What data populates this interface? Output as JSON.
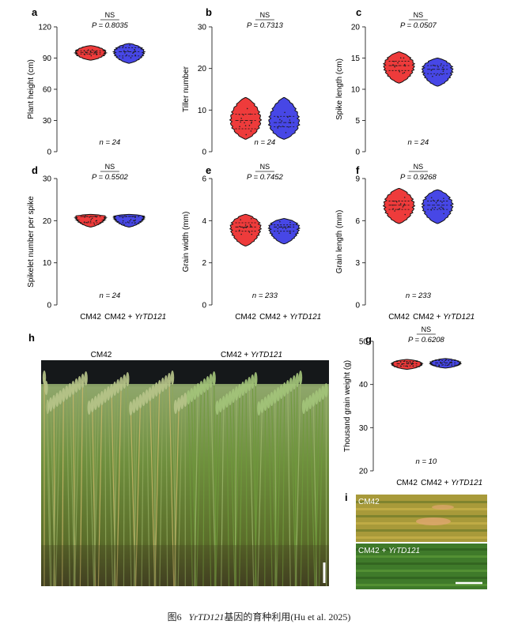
{
  "figure": {
    "caption_prefix": "图6",
    "caption_italic": "YrTD121",
    "caption_rest": "基因的育种利用(Hu et al. 2025)",
    "genotypes": [
      "CM42",
      "CM42 + ",
      "YrTD121"
    ],
    "colors": {
      "cm42": "#ee3b3b",
      "yrtd": "#4747e6",
      "outline": "#111111"
    }
  },
  "chart_data": [
    {
      "panel": "a",
      "type": "violin",
      "ylabel": "Plant height (cm)",
      "ylim": [
        0,
        120
      ],
      "yticks": [
        0,
        30,
        60,
        90,
        120
      ],
      "sig": "NS",
      "p": "P = 0.8035",
      "n": "n = 24",
      "series": [
        {
          "name": "CM42",
          "center": 95.5,
          "min": 88,
          "max": 102,
          "q1": 94,
          "q3": 97
        },
        {
          "name": "CM42 + YrTD121",
          "center": 96,
          "min": 85,
          "max": 104,
          "q1": 92,
          "q3": 100
        }
      ]
    },
    {
      "panel": "b",
      "type": "violin",
      "ylabel": "Tiller number",
      "ylim": [
        0,
        30
      ],
      "yticks": [
        0,
        10,
        20,
        30
      ],
      "sig": "NS",
      "p": "P = 0.7313",
      "n": "n = 24",
      "series": [
        {
          "name": "CM42",
          "center": 7.5,
          "min": 3,
          "max": 13,
          "q1": 5.5,
          "q3": 9
        },
        {
          "name": "CM42 + YrTD121",
          "center": 7,
          "min": 3,
          "max": 13,
          "q1": 6,
          "q3": 8.5
        }
      ]
    },
    {
      "panel": "c",
      "type": "violin",
      "ylabel": "Spike length (cm)",
      "ylim": [
        0,
        20
      ],
      "yticks": [
        0,
        5,
        10,
        15,
        20
      ],
      "sig": "NS",
      "p": "P = 0.0507",
      "n": "n = 24",
      "series": [
        {
          "name": "CM42",
          "center": 13.8,
          "min": 11,
          "max": 16,
          "q1": 13,
          "q3": 14.5
        },
        {
          "name": "CM42 + YrTD121",
          "center": 13.2,
          "min": 10.5,
          "max": 15,
          "q1": 12.5,
          "q3": 13.8
        }
      ]
    },
    {
      "panel": "d",
      "type": "violin",
      "ylabel": "Spikelet number per spike",
      "ylim": [
        0,
        30
      ],
      "yticks": [
        0,
        10,
        20,
        30
      ],
      "sig": "NS",
      "p": "P = 0.5502",
      "n": "n = 24",
      "series": [
        {
          "name": "CM42",
          "center": 21,
          "min": 18.5,
          "max": 21.5,
          "q1": 19.5,
          "q3": 21
        },
        {
          "name": "CM42 + YrTD121",
          "center": 21,
          "min": 18.5,
          "max": 21.5,
          "q1": 19.5,
          "q3": 21
        }
      ]
    },
    {
      "panel": "e",
      "type": "violin",
      "ylabel": "Grain width (mm)",
      "ylim": [
        0,
        6
      ],
      "yticks": [
        0,
        2,
        4,
        6
      ],
      "sig": "NS",
      "p": "P = 0.7452",
      "n": "n = 233",
      "series": [
        {
          "name": "CM42",
          "center": 3.7,
          "min": 2.8,
          "max": 4.3,
          "q1": 3.5,
          "q3": 3.9
        },
        {
          "name": "CM42 + YrTD121",
          "center": 3.7,
          "min": 2.9,
          "max": 4.1,
          "q1": 3.5,
          "q3": 3.8
        }
      ]
    },
    {
      "panel": "f",
      "type": "violin",
      "ylabel": "Grain length (mm)",
      "ylim": [
        0,
        9
      ],
      "yticks": [
        0,
        3,
        6,
        9
      ],
      "sig": "NS",
      "p": "P = 0.9268",
      "n": "n = 233",
      "series": [
        {
          "name": "CM42",
          "center": 7.1,
          "min": 5.8,
          "max": 8.3,
          "q1": 6.8,
          "q3": 7.4
        },
        {
          "name": "CM42 + YrTD121",
          "center": 7.1,
          "min": 5.8,
          "max": 8.2,
          "q1": 6.8,
          "q3": 7.4
        }
      ]
    },
    {
      "panel": "g",
      "type": "violin",
      "ylabel": "Thousand grain weight (g)",
      "ylim": [
        20,
        50
      ],
      "yticks": [
        20,
        30,
        40,
        50
      ],
      "sig": "NS",
      "p": "P = 0.6208",
      "n": "n = 10",
      "series": [
        {
          "name": "CM42",
          "center": 44.8,
          "min": 43.5,
          "max": 45.8,
          "q1": 44.3,
          "q3": 45.3
        },
        {
          "name": "CM42 + YrTD121",
          "center": 45,
          "min": 43.8,
          "max": 46,
          "q1": 44.5,
          "q3": 45.5
        }
      ]
    }
  ],
  "photos": {
    "h": {
      "label": "h",
      "left_title": "CM42",
      "right_title_prefix": "CM42 + ",
      "right_title_italic": "YrTD121"
    },
    "i": {
      "label": "i",
      "top_label": "CM42",
      "bottom_label_prefix": "CM42 + ",
      "bottom_label_italic": "YrTD121"
    }
  }
}
